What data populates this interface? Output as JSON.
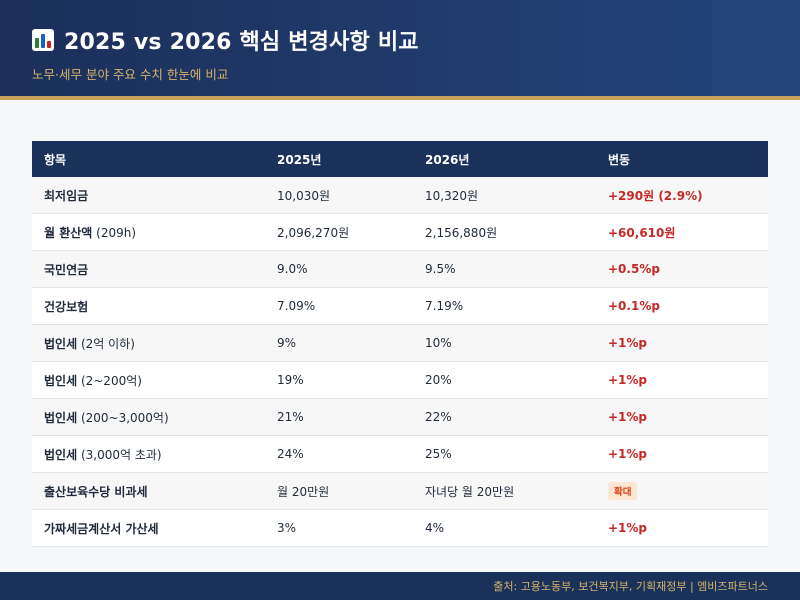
{
  "header": {
    "icon": "bar-chart-icon",
    "title": "2025 vs 2026 핵심 변경사항 비교",
    "subtitle": "노무·세무 분야 주요 수치 한눈에 비교"
  },
  "table": {
    "headers": [
      "항목",
      "2025년",
      "2026년",
      "변동"
    ],
    "rows": [
      {
        "item": "최저임금",
        "note": "",
        "y2025": "10,030원",
        "y2026": "10,320원",
        "change": "+290원 (2.9%)",
        "badge": false
      },
      {
        "item": "월 환산액",
        "note": " (209h)",
        "y2025": "2,096,270원",
        "y2026": "2,156,880원",
        "change": "+60,610원",
        "badge": false
      },
      {
        "item": "국민연금",
        "note": "",
        "y2025": "9.0%",
        "y2026": "9.5%",
        "change": "+0.5%p",
        "badge": false
      },
      {
        "item": "건강보험",
        "note": "",
        "y2025": "7.09%",
        "y2026": "7.19%",
        "change": "+0.1%p",
        "badge": false
      },
      {
        "item": "법인세",
        "note": " (2억 이하)",
        "y2025": "9%",
        "y2026": "10%",
        "change": "+1%p",
        "badge": false
      },
      {
        "item": "법인세",
        "note": " (2~200억)",
        "y2025": "19%",
        "y2026": "20%",
        "change": "+1%p",
        "badge": false
      },
      {
        "item": "법인세",
        "note": " (200~3,000억)",
        "y2025": "21%",
        "y2026": "22%",
        "change": "+1%p",
        "badge": false
      },
      {
        "item": "법인세",
        "note": " (3,000억 초과)",
        "y2025": "24%",
        "y2026": "25%",
        "change": "+1%p",
        "badge": false
      },
      {
        "item": "출산보육수당 비과세",
        "note": "",
        "y2025": "월 20만원",
        "y2026": "자녀당 월 20만원",
        "change": "확대",
        "badge": true
      },
      {
        "item": "가짜세금계산서 가산세",
        "note": "",
        "y2025": "3%",
        "y2026": "4%",
        "change": "+1%p",
        "badge": false
      }
    ]
  },
  "footer": {
    "source": "출처: 고용노동부, 보건복지부, 기획재정부 | 엠비즈파트너스"
  },
  "colors": {
    "header_bg": "#1c2f5a",
    "accent_gold": "#c8a45a",
    "table_header_bg": "#1a3259",
    "change_red": "#c62828",
    "badge_bg": "#fde6d2"
  }
}
